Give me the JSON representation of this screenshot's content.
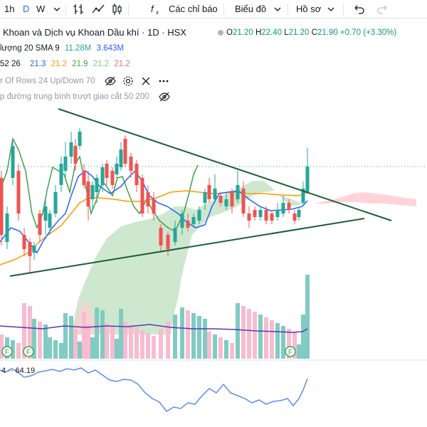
{
  "toolbar": {
    "interval_1h": "1h",
    "interval_d": "D",
    "interval_w": "W",
    "indicators_label": "Các chỉ báo",
    "chart_type_label": "Biểu đồ",
    "profile_label": "Hồ sơ"
  },
  "symbol": {
    "title": "Khoan và Dịch vụ Khoan Dầu khí · 1D · HSX",
    "open_label": "O",
    "open": "21.20",
    "high_label": "H",
    "high": "22.40",
    "low_label": "L",
    "low": "21.20",
    "close_label": "C",
    "close": "21.90",
    "change": "+0.70 (+3.30%)"
  },
  "indicators": {
    "volume_label": "lượng 20 SMA 9",
    "volume_v1": "11.28M",
    "volume_v2": "3.643M",
    "ichimoku_params": "52 26",
    "ichimoku_values": [
      "21.3",
      "21.2",
      "21.9",
      "21.2",
      "21.2"
    ],
    "vrvp_label": "r Of Rows 24 Up/Down 70",
    "ma_cross_label": "p đường trung bình trượt giao cắt 50 200"
  },
  "rsi": {
    "value": "64.19"
  },
  "colors": {
    "up": "#26a69a",
    "down": "#ef5350",
    "accent": "#2962ff",
    "ema_blue": "#2962ff",
    "ema_orange": "#ff9800",
    "lagging_green": "#43a047",
    "trendline": "#1b5e3b",
    "rsi_line": "#5b8def"
  },
  "icons": [
    "plus-icon",
    "bar-chart-icon",
    "line-chart-icon",
    "candles-icon",
    "fx-icon",
    "undo-icon",
    "redo-icon",
    "eye-off-icon",
    "gear-icon",
    "close-icon",
    "more-icon",
    "earnings-flag-icon"
  ]
}
